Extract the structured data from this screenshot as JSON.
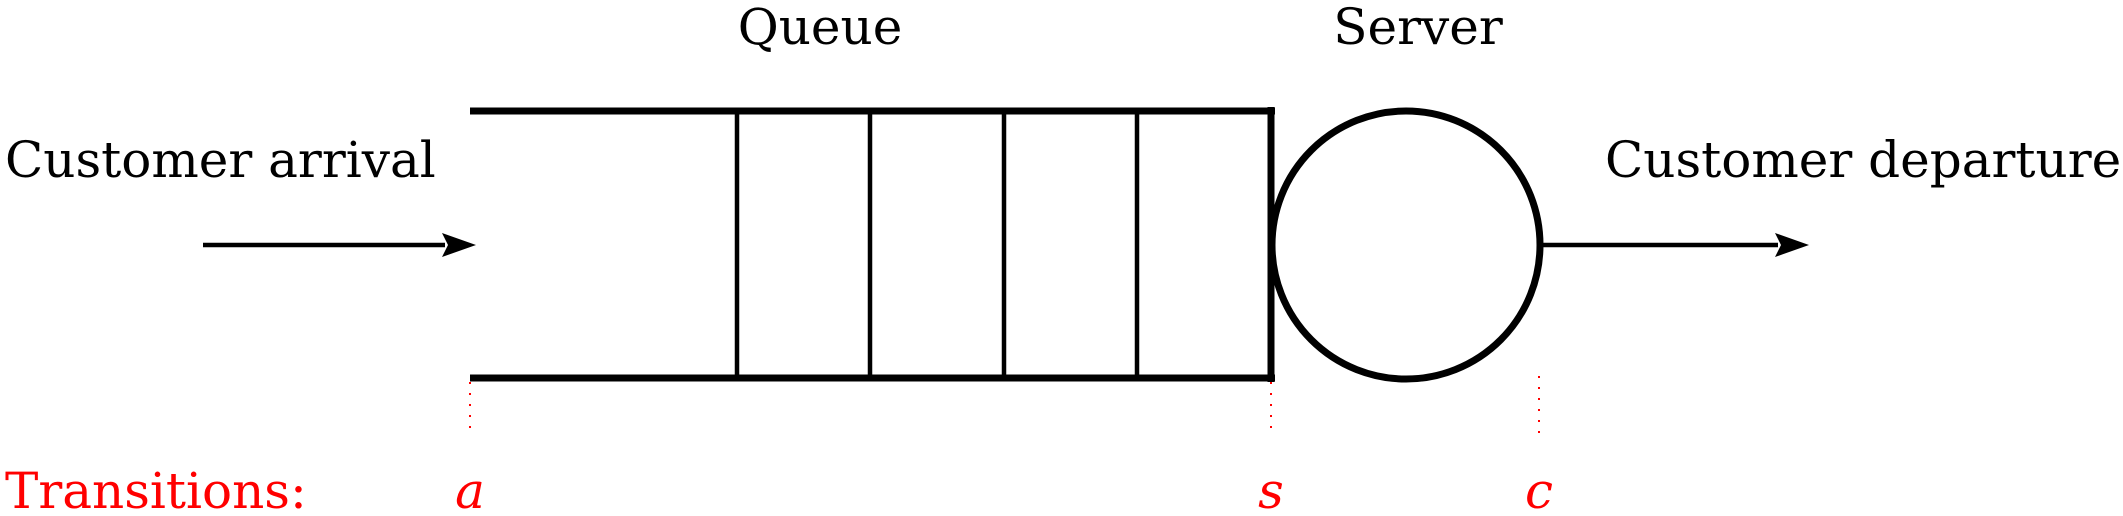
{
  "labels": {
    "queue": "Queue",
    "server": "Server",
    "arrival": "Customer arrival",
    "departure": "Customer departure"
  },
  "transitions": {
    "heading": "Transitions:",
    "a": "a",
    "s": "s",
    "c": "c"
  },
  "colors": {
    "line": "#000000",
    "transition": "#ff0000"
  },
  "icons": {
    "arrival_arrow": "arrow-right-icon",
    "departure_arrow": "arrow-right-icon"
  }
}
